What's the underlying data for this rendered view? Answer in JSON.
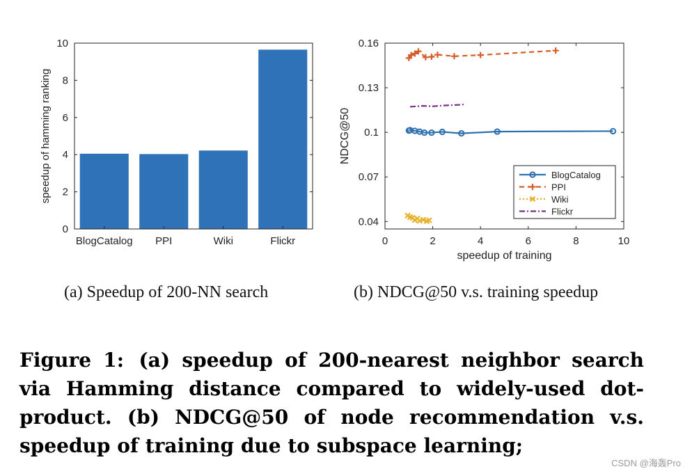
{
  "chart_data": [
    {
      "type": "bar",
      "categories": [
        "BlogCatalog",
        "PPI",
        "Wiki",
        "Flickr"
      ],
      "values": [
        4.05,
        4.03,
        4.22,
        9.65
      ],
      "ylabel": "speedup of hamming ranking",
      "xlabel": "",
      "ylim": [
        0,
        10
      ],
      "yticks": [
        0,
        2,
        4,
        6,
        8,
        10
      ],
      "color": "#3072b8"
    },
    {
      "type": "line",
      "xlabel": "speedup of training",
      "ylabel": "NDCG@50",
      "xlim": [
        0,
        10
      ],
      "ylim": [
        0.035,
        0.16
      ],
      "xticks": [
        0,
        2,
        4,
        6,
        8,
        10
      ],
      "yticks": [
        0.04,
        0.07,
        0.1,
        0.13,
        0.16
      ],
      "ytick_labels": [
        "0.04",
        "0.07",
        "0.1",
        "0.13",
        "0.16"
      ],
      "legend_position": "lower-right",
      "series": [
        {
          "name": "BlogCatalog",
          "color": "#2e6fae",
          "style": "solid",
          "marker": "circle",
          "x": [
            1.0,
            1.05,
            1.25,
            1.45,
            1.65,
            1.95,
            2.4,
            3.2,
            4.7,
            9.55
          ],
          "y": [
            0.1012,
            0.1015,
            0.101,
            0.1005,
            0.0998,
            0.0998,
            0.1003,
            0.0993,
            0.1005,
            0.1008
          ]
        },
        {
          "name": "PPI",
          "color": "#d85b2a",
          "style": "dashed",
          "marker": "plus",
          "x": [
            1.0,
            1.1,
            1.25,
            1.4,
            1.7,
            1.95,
            2.2,
            2.9,
            4.0,
            7.15
          ],
          "y": [
            0.15,
            0.152,
            0.153,
            0.1545,
            0.1505,
            0.1508,
            0.1522,
            0.1512,
            0.152,
            0.155
          ]
        },
        {
          "name": "Wiki",
          "color": "#e8b12c",
          "style": "dotted",
          "marker": "x",
          "x": [
            0.95,
            1.05,
            1.15,
            1.25,
            1.35,
            1.45,
            1.6,
            1.75,
            1.85
          ],
          "y": [
            0.044,
            0.043,
            0.0425,
            0.041,
            0.042,
            0.0405,
            0.0412,
            0.0402,
            0.0408
          ]
        },
        {
          "name": "Flickr",
          "color": "#7b2f8e",
          "style": "dashdot",
          "marker": "none",
          "x": [
            1.05,
            1.3,
            1.6,
            2.0,
            2.4,
            2.8,
            3.1,
            3.35
          ],
          "y": [
            0.1172,
            0.1175,
            0.1178,
            0.1175,
            0.118,
            0.1183,
            0.1185,
            0.1188
          ]
        }
      ]
    }
  ],
  "captions": {
    "a": "(a)  Speedup of 200-NN search",
    "b": "(b)  NDCG@50 v.s. training speedup"
  },
  "figure_caption": {
    "label": "Figure 1:",
    "text": "(a) speedup of 200-nearest neighbor search via Hamming distance compared to widely-used dot-product. (b) NDCG@50 of node recommendation v.s. speedup of training due to subspace learning;"
  },
  "watermark": "CSDN @海轰Pro"
}
